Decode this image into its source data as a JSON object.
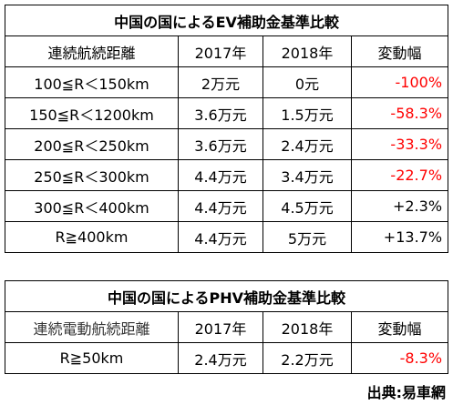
{
  "tables": [
    {
      "title": "中国の国によるEV補助金基準比較",
      "header": [
        "連続航続距離",
        "2017年",
        "2018年",
        "変動幅"
      ],
      "rows": [
        [
          "100≦R＜150km",
          "2万元",
          "0元",
          "-100%"
        ],
        [
          "150≦R＜1200km",
          "3.6万元",
          "1.5万元",
          "-58.3%"
        ],
        [
          "200≦R＜250km",
          "3.6万元",
          "2.4万元",
          "-33.3%"
        ],
        [
          "250≦R＜300km",
          "4.4万元",
          "3.4万元",
          "-22.7%"
        ],
        [
          "300≦R＜400km",
          "4.4万元",
          "4.5万元",
          "+2.3%"
        ],
        [
          "R≧400km",
          "4.4万元",
          "5万元",
          "+13.7%"
        ]
      ]
    },
    {
      "title": "中国の国によるPHV補助金基準比較",
      "header": [
        "連続電動航続距離",
        "2017年",
        "2018年",
        "変動幅"
      ],
      "rows": [
        [
          "R≧50km",
          "2.4万元",
          "2.2万元",
          "-8.3%"
        ]
      ]
    }
  ],
  "source": "出典:易車網"
}
